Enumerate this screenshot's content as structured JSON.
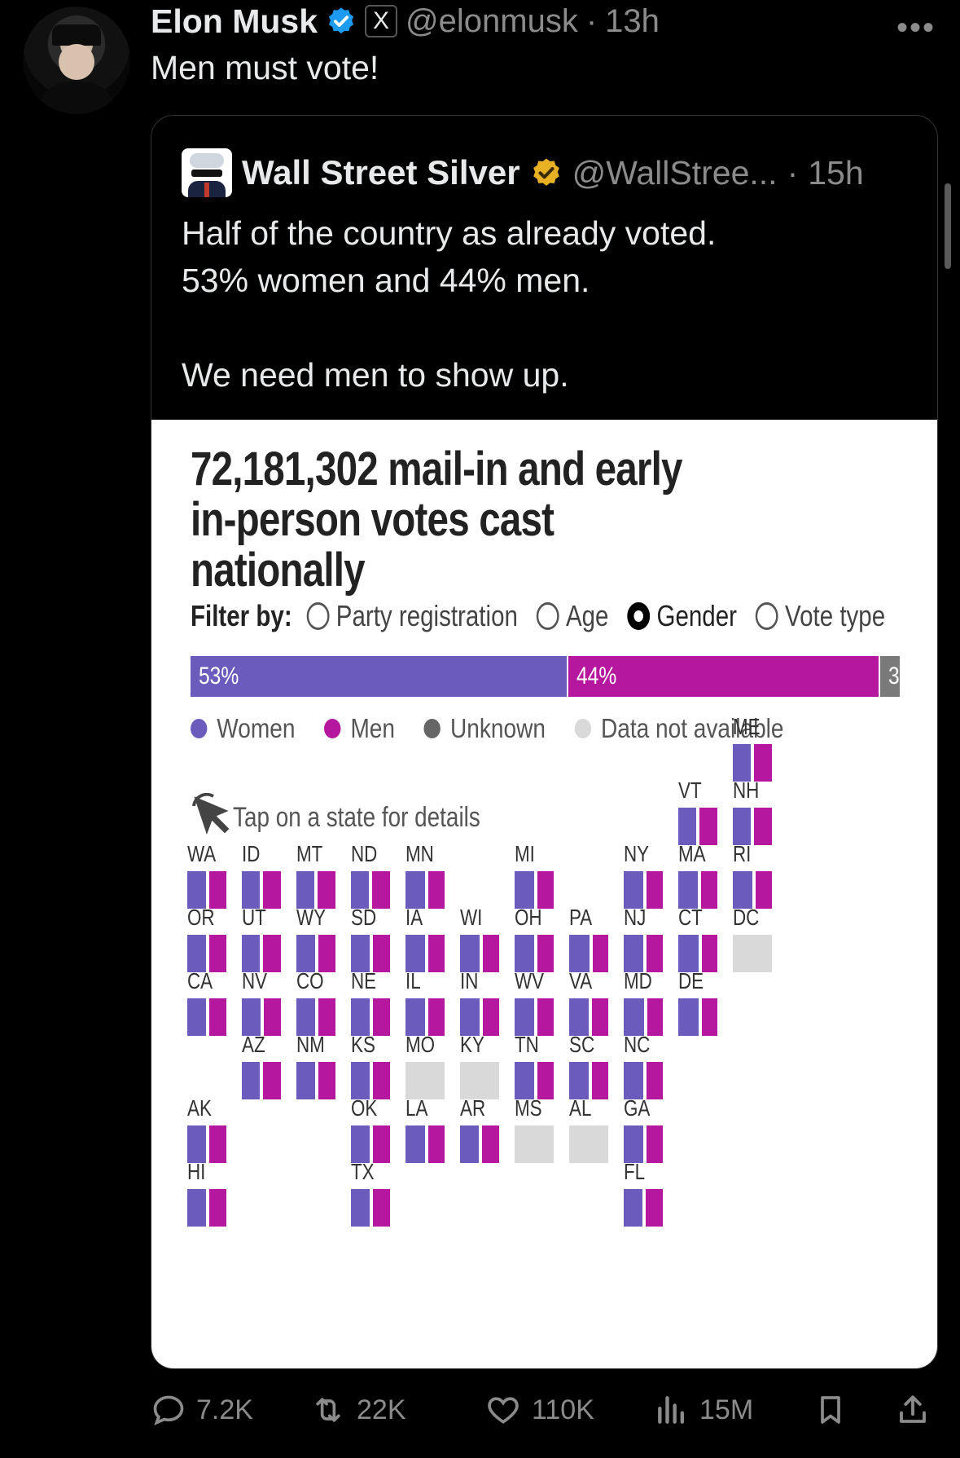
{
  "tweet": {
    "author_name": "Elon Musk",
    "handle": "@elonmusk",
    "separator": "·",
    "time": "13h",
    "text": "Men must vote!",
    "more": "•••",
    "xbadge": "X"
  },
  "quote": {
    "author_name": "Wall Street Silver",
    "handle": "@WallStree...",
    "separator": "·",
    "time": "15h",
    "lines": [
      "Half of the country as already voted.",
      "53% women and 44% men.",
      "",
      "We need men to show up."
    ]
  },
  "infographic": {
    "title": "72,181,302 mail-in and early in-person votes cast nationally",
    "filter_label": "Filter by:",
    "filter_options": [
      {
        "label": "Party registration",
        "selected": false
      },
      {
        "label": "Age",
        "selected": false
      },
      {
        "label": "Gender",
        "selected": true
      },
      {
        "label": "Vote type",
        "selected": false
      }
    ],
    "bar": [
      {
        "label": "53%",
        "value": 53,
        "color": "#6b5bbd"
      },
      {
        "label": "44%",
        "value": 44,
        "color": "#b5179e"
      },
      {
        "label": "3",
        "value": 3,
        "color": "#7a7a7a"
      }
    ],
    "legend": [
      {
        "label": "Women",
        "color": "#6b5bbd"
      },
      {
        "label": "Men",
        "color": "#b5179e"
      },
      {
        "label": "Unknown",
        "color": "#666666"
      },
      {
        "label": "Data not available",
        "color": "#d9d9d9"
      }
    ],
    "tap_hint": "Tap on a state for details",
    "states": [
      {
        "abbr": "ME",
        "col": 10,
        "row": 0,
        "women": 0.5
      },
      {
        "abbr": "VT",
        "col": 9,
        "row": 1,
        "women": 0.5
      },
      {
        "abbr": "NH",
        "col": 10,
        "row": 1,
        "women": 0.5
      },
      {
        "abbr": "WA",
        "col": 0,
        "row": 2,
        "women": 0.52
      },
      {
        "abbr": "ID",
        "col": 1,
        "row": 2,
        "women": 0.5
      },
      {
        "abbr": "MT",
        "col": 2,
        "row": 2,
        "women": 0.5
      },
      {
        "abbr": "ND",
        "col": 3,
        "row": 2,
        "women": 0.5
      },
      {
        "abbr": "MN",
        "col": 4,
        "row": 2,
        "women": 0.54
      },
      {
        "abbr": "MI",
        "col": 6,
        "row": 2,
        "women": 0.55
      },
      {
        "abbr": "NY",
        "col": 8,
        "row": 2,
        "women": 0.55
      },
      {
        "abbr": "MA",
        "col": 9,
        "row": 2,
        "women": 0.55
      },
      {
        "abbr": "RI",
        "col": 10,
        "row": 2,
        "women": 0.55
      },
      {
        "abbr": "OR",
        "col": 0,
        "row": 3,
        "women": 0.52
      },
      {
        "abbr": "UT",
        "col": 1,
        "row": 3,
        "women": 0.5
      },
      {
        "abbr": "WY",
        "col": 2,
        "row": 3,
        "women": 0.52
      },
      {
        "abbr": "SD",
        "col": 3,
        "row": 3,
        "women": 0.52
      },
      {
        "abbr": "IA",
        "col": 4,
        "row": 3,
        "women": 0.55
      },
      {
        "abbr": "WI",
        "col": 5,
        "row": 3,
        "women": 0.55
      },
      {
        "abbr": "OH",
        "col": 6,
        "row": 3,
        "women": 0.55
      },
      {
        "abbr": "PA",
        "col": 7,
        "row": 3,
        "women": 0.56
      },
      {
        "abbr": "NJ",
        "col": 8,
        "row": 3,
        "women": 0.55
      },
      {
        "abbr": "CT",
        "col": 9,
        "row": 3,
        "women": 0.56
      },
      {
        "abbr": "DC",
        "col": 10,
        "row": 3,
        "women": null
      },
      {
        "abbr": "CA",
        "col": 0,
        "row": 4,
        "women": 0.52
      },
      {
        "abbr": "NV",
        "col": 1,
        "row": 4,
        "women": 0.52
      },
      {
        "abbr": "CO",
        "col": 2,
        "row": 4,
        "women": 0.52
      },
      {
        "abbr": "NE",
        "col": 3,
        "row": 4,
        "women": 0.52
      },
      {
        "abbr": "IL",
        "col": 4,
        "row": 4,
        "women": 0.55
      },
      {
        "abbr": "IN",
        "col": 5,
        "row": 4,
        "women": 0.55
      },
      {
        "abbr": "WV",
        "col": 6,
        "row": 4,
        "women": 0.55
      },
      {
        "abbr": "VA",
        "col": 7,
        "row": 4,
        "women": 0.55
      },
      {
        "abbr": "MD",
        "col": 8,
        "row": 4,
        "women": 0.56
      },
      {
        "abbr": "DE",
        "col": 9,
        "row": 4,
        "women": 0.56
      },
      {
        "abbr": "AZ",
        "col": 1,
        "row": 5,
        "women": 0.5
      },
      {
        "abbr": "NM",
        "col": 2,
        "row": 5,
        "women": 0.52
      },
      {
        "abbr": "KS",
        "col": 3,
        "row": 5,
        "women": 0.52
      },
      {
        "abbr": "MO",
        "col": 4,
        "row": 5,
        "women": null
      },
      {
        "abbr": "KY",
        "col": 5,
        "row": 5,
        "women": null
      },
      {
        "abbr": "TN",
        "col": 6,
        "row": 5,
        "women": 0.55
      },
      {
        "abbr": "SC",
        "col": 7,
        "row": 5,
        "women": 0.55
      },
      {
        "abbr": "NC",
        "col": 8,
        "row": 5,
        "women": 0.55
      },
      {
        "abbr": "AK",
        "col": 0,
        "row": 6,
        "women": 0.52
      },
      {
        "abbr": "OK",
        "col": 3,
        "row": 6,
        "women": 0.52
      },
      {
        "abbr": "LA",
        "col": 4,
        "row": 6,
        "women": 0.55
      },
      {
        "abbr": "AR",
        "col": 5,
        "row": 6,
        "women": 0.52
      },
      {
        "abbr": "MS",
        "col": 6,
        "row": 6,
        "women": null
      },
      {
        "abbr": "AL",
        "col": 7,
        "row": 6,
        "women": null
      },
      {
        "abbr": "GA",
        "col": 8,
        "row": 6,
        "women": 0.55
      },
      {
        "abbr": "HI",
        "col": 0,
        "row": 7,
        "women": 0.52
      },
      {
        "abbr": "TX",
        "col": 3,
        "row": 7,
        "women": 0.52
      },
      {
        "abbr": "FL",
        "col": 8,
        "row": 7,
        "women": 0.53
      }
    ]
  },
  "actions": {
    "reply_count": "7.2K",
    "repost_count": "22K",
    "like_count": "110K",
    "view_count": "15M"
  },
  "colors": {
    "verified_blue": "#1d9bf0",
    "verified_gold": "#e8b023",
    "women": "#6b5bbd",
    "men": "#b5179e",
    "not_available": "#d9d9d9"
  }
}
